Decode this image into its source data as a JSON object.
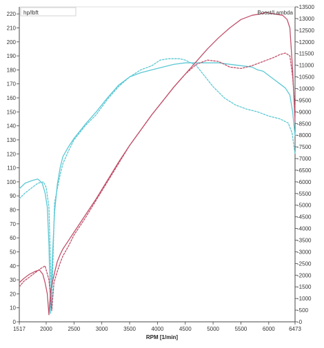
{
  "chart_data": {
    "type": "line",
    "xlabel": "RPM  [1/min]",
    "ylabel_left": "hp/lbft",
    "ylabel_right": "Boost/Lambda",
    "xlim": [
      1517,
      6473
    ],
    "ylim_left": [
      0,
      225
    ],
    "ylim_right": [
      0,
      13500
    ],
    "grid": false,
    "x_ticks": [
      1517,
      2000,
      2500,
      3000,
      3500,
      4000,
      4500,
      5000,
      5500,
      6000,
      6473
    ],
    "x_tick_labels": [
      "1517",
      "2000",
      "2500",
      "3000",
      "3500",
      "4000",
      "4500",
      "5000",
      "5500",
      "6000",
      "6473"
    ],
    "left_ticks": [
      0,
      10,
      20,
      30,
      40,
      50,
      60,
      70,
      80,
      90,
      100,
      110,
      120,
      130,
      140,
      150,
      160,
      170,
      180,
      190,
      200,
      210,
      220
    ],
    "left_tick_labels": [
      "0",
      "10",
      "20",
      "30",
      "40",
      "50",
      "60",
      "70",
      "80",
      "90",
      "100",
      "110",
      "120",
      "130",
      "140",
      "150",
      "160",
      "170",
      "180",
      "190",
      "200",
      "210",
      "220"
    ],
    "right_ticks": [
      0,
      500,
      1000,
      1500,
      2000,
      2500,
      3000,
      3500,
      4000,
      4500,
      5000,
      5500,
      6000,
      6500,
      7000,
      7500,
      8000,
      8500,
      9000,
      9500,
      10000,
      10500,
      11000,
      11500,
      12000,
      12500,
      13000,
      13500
    ],
    "right_tick_labels": [
      "-0",
      "-500",
      "-1000",
      "-1500",
      "-2000",
      "-2500",
      "-3000",
      "-3500",
      "-4000",
      "-4500",
      "-5000",
      "-5500",
      "-6000",
      "-6500",
      "-7000",
      "-7500",
      "-8000",
      "-8500",
      "-9000",
      "-9500",
      "-10000",
      "-10500",
      "-11000",
      "-11500",
      "-12000",
      "-12500",
      "-13000",
      "-13500"
    ],
    "series": [
      {
        "color": "#5cc8d4",
        "dash": "solid",
        "x": [
          1517,
          1620,
          1750,
          1850,
          1930,
          1980,
          2020,
          2050,
          2080,
          2110,
          2150,
          2200,
          2250,
          2300,
          2400,
          2500,
          2700,
          2900,
          3100,
          3300,
          3500,
          3700,
          3900,
          4100,
          4300,
          4500,
          4700,
          4900,
          5100,
          5300,
          5500,
          5700,
          5800,
          5900,
          6000,
          6100,
          6200,
          6300,
          6380,
          6430,
          6473
        ],
        "y": [
          95,
          99,
          101,
          102,
          99,
          92,
          82,
          55,
          6,
          45,
          78,
          98,
          110,
          118,
          125,
          131,
          141,
          150,
          160,
          169,
          175,
          178,
          180,
          182,
          184,
          185,
          185,
          185,
          185,
          184,
          183,
          182,
          180,
          179,
          176,
          173,
          170,
          167,
          162,
          150,
          133
        ]
      },
      {
        "color": "#5cc8d4",
        "dash": "dashed",
        "x": [
          1517,
          1620,
          1750,
          1850,
          1950,
          2000,
          2050,
          2100,
          2150,
          2200,
          2250,
          2300,
          2400,
          2500,
          2700,
          2900,
          3100,
          3300,
          3500,
          3700,
          3900,
          4050,
          4200,
          4400,
          4500,
          4700,
          4800,
          5000,
          5200,
          5400,
          5600,
          5800,
          6000,
          6200,
          6350,
          6420,
          6473
        ],
        "y": [
          88,
          92,
          96,
          99,
          100,
          96,
          82,
          10,
          85,
          95,
          105,
          113,
          122,
          130,
          140,
          148,
          159,
          168,
          175,
          180,
          183,
          187,
          188,
          188,
          187,
          183,
          178,
          168,
          160,
          155,
          152,
          150,
          147,
          145,
          142,
          135,
          120
        ]
      },
      {
        "color": "#c0506a",
        "dash": "solid",
        "x": [
          1517,
          1600,
          1700,
          1800,
          1880,
          1940,
          1980,
          2020,
          2050,
          2080,
          2110,
          2150,
          2200,
          2250,
          2300,
          2400,
          2500,
          2700,
          2900,
          3100,
          3300,
          3500,
          3700,
          3900,
          4100,
          4300,
          4500,
          4700,
          4900,
          5100,
          5300,
          5500,
          5700,
          5850,
          5950,
          6100,
          6250,
          6330,
          6380,
          6430,
          6473
        ],
        "y": [
          28,
          31,
          34,
          36,
          37,
          34,
          28,
          20,
          5,
          22,
          28,
          35,
          43,
          48,
          52,
          58,
          64,
          76,
          88,
          101,
          114,
          126,
          137,
          148,
          158,
          168,
          177,
          186,
          195,
          203,
          210,
          216,
          219,
          220,
          221,
          220,
          219,
          216,
          210,
          180,
          143
        ]
      },
      {
        "color": "#c0506a",
        "dash": "dashed",
        "x": [
          1517,
          1600,
          1700,
          1800,
          1900,
          1980,
          2050,
          2100,
          2140,
          2200,
          2250,
          2300,
          2400,
          2500,
          2700,
          2900,
          3100,
          3300,
          3500,
          3700,
          3900,
          4100,
          4300,
          4500,
          4700,
          4900,
          5100,
          5300,
          5500,
          5700,
          5900,
          6100,
          6200,
          6300,
          6380,
          6430,
          6473
        ],
        "y": [
          25,
          29,
          32,
          35,
          38,
          40,
          30,
          8,
          28,
          36,
          42,
          47,
          54,
          62,
          74,
          87,
          100,
          113,
          126,
          137,
          148,
          158,
          168,
          177,
          184,
          187,
          186,
          182,
          181,
          183,
          186,
          189,
          191,
          192,
          190,
          175,
          152
        ]
      }
    ]
  }
}
